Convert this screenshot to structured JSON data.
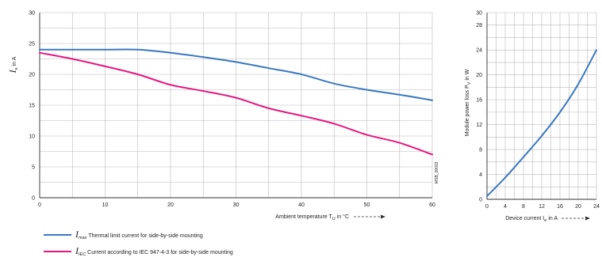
{
  "colors": {
    "thermal": "#3a78c0",
    "iec": "#e5177f",
    "grid": "#b9b9b9",
    "axis": "#333333"
  },
  "chart_data": [
    {
      "type": "line",
      "title": "",
      "xlabel": "Ambient temperature T",
      "xlabel_sub": "U",
      "xlabel_unit": "in °C",
      "ylabel": "I",
      "ylabel_sub": "e",
      "ylabel_unit": "in A",
      "xlim": [
        0,
        60
      ],
      "ylim": [
        0,
        30
      ],
      "xticks": [
        0,
        10,
        20,
        30,
        40,
        50,
        60
      ],
      "yticks": [
        0,
        5,
        10,
        15,
        20,
        25,
        30
      ],
      "grid": true,
      "side_code": "MSB_00003",
      "series": [
        {
          "key": "thermal",
          "name": "I",
          "name_sub": "max",
          "description": "Thermal limit current for side-by-side mounting",
          "x": [
            0,
            5,
            10,
            15,
            20,
            25,
            30,
            35,
            40,
            45,
            50,
            55,
            60
          ],
          "y": [
            24,
            24,
            24,
            24,
            23.5,
            22.8,
            22,
            21,
            20,
            18.5,
            17.5,
            16.7,
            15.8
          ]
        },
        {
          "key": "iec",
          "name": "I",
          "name_sub": "IEC",
          "description": "Current according to IEC 947-4-3 for side-by-side mounting",
          "x": [
            0,
            5,
            10,
            15,
            20,
            25,
            30,
            35,
            40,
            45,
            50,
            55,
            60
          ],
          "y": [
            23.5,
            22.5,
            21.3,
            20,
            18.3,
            17.3,
            16.2,
            14.5,
            13.3,
            12,
            10.2,
            8.9,
            7
          ]
        }
      ]
    },
    {
      "type": "line",
      "title": "",
      "xlabel": "Device current I",
      "xlabel_sub": "e",
      "xlabel_unit": "in A",
      "ylabel": "Module power loss P",
      "ylabel_sub": "V",
      "ylabel_unit": "in W",
      "xlim": [
        0,
        24
      ],
      "ylim": [
        0,
        30
      ],
      "xticks": [
        0,
        4,
        8,
        12,
        16,
        20,
        24
      ],
      "yticks": [
        0,
        4,
        8,
        12,
        16,
        20,
        24,
        28,
        30
      ],
      "grid": true,
      "series": [
        {
          "key": "loss",
          "x": [
            0,
            4,
            8,
            12,
            16,
            20,
            24
          ],
          "y": [
            0.5,
            3.5,
            6.8,
            10.2,
            14,
            18.5,
            24
          ]
        }
      ]
    }
  ]
}
